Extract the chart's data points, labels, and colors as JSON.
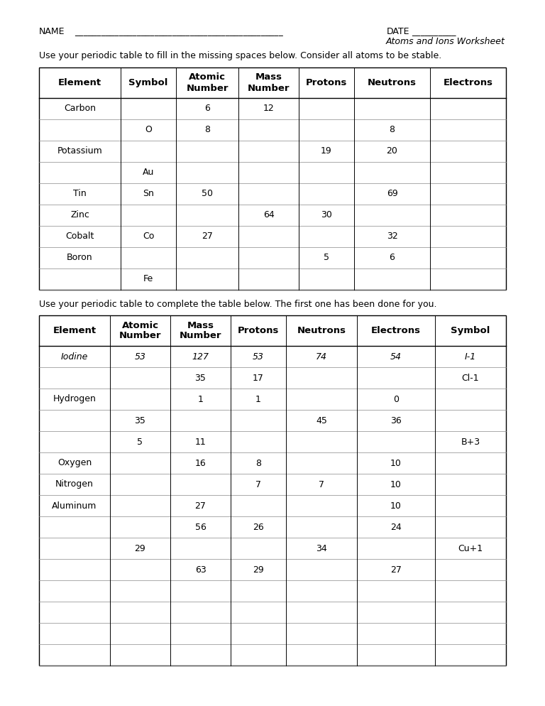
{
  "title_name": "NAME",
  "title_name_line": "_______________________________________________",
  "title_date": "DATE",
  "title_date_line": "__________",
  "title_line2": "Atoms and Ions Worksheet",
  "instruction1": "Use your periodic table to fill in the missing spaces below. Consider all atoms to be stable.",
  "instruction2": "Use your periodic table to complete the table below. The first one has been done for you.",
  "table1_headers": [
    "Element",
    "Symbol",
    "Atomic\nNumber",
    "Mass\nNumber",
    "Protons",
    "Neutrons",
    "Electrons"
  ],
  "table1_rows": [
    [
      "Carbon",
      "",
      "6",
      "12",
      "",
      "",
      ""
    ],
    [
      "",
      "O",
      "8",
      "",
      "",
      "8",
      ""
    ],
    [
      "Potassium",
      "",
      "",
      "",
      "19",
      "20",
      ""
    ],
    [
      "",
      "Au",
      "",
      "",
      "",
      "",
      ""
    ],
    [
      "Tin",
      "Sn",
      "50",
      "",
      "",
      "69",
      ""
    ],
    [
      "Zinc",
      "",
      "",
      "64",
      "30",
      "",
      ""
    ],
    [
      "Cobalt",
      "Co",
      "27",
      "",
      "",
      "32",
      ""
    ],
    [
      "Boron",
      "",
      "",
      "",
      "5",
      "6",
      ""
    ],
    [
      "",
      "Fe",
      "",
      "",
      "",
      "",
      ""
    ]
  ],
  "table2_headers": [
    "Element",
    "Atomic\nNumber",
    "Mass\nNumber",
    "Protons",
    "Neutrons",
    "Electrons",
    "Symbol"
  ],
  "table2_rows": [
    [
      "Iodine",
      "53",
      "127",
      "53",
      "74",
      "54",
      "I-1"
    ],
    [
      "",
      "",
      "35",
      "17",
      "",
      "",
      "Cl-1"
    ],
    [
      "Hydrogen",
      "",
      "1",
      "1",
      "",
      "0",
      ""
    ],
    [
      "",
      "35",
      "",
      "",
      "45",
      "36",
      ""
    ],
    [
      "",
      "5",
      "11",
      "",
      "",
      "",
      "B+3"
    ],
    [
      "Oxygen",
      "",
      "16",
      "8",
      "",
      "10",
      ""
    ],
    [
      "Nitrogen",
      "",
      "",
      "7",
      "7",
      "10",
      ""
    ],
    [
      "Aluminum",
      "",
      "27",
      "",
      "",
      "10",
      ""
    ],
    [
      "",
      "",
      "56",
      "26",
      "",
      "24",
      ""
    ],
    [
      "",
      "29",
      "",
      "",
      "34",
      "",
      "Cu+1"
    ],
    [
      "",
      "",
      "63",
      "29",
      "",
      "27",
      ""
    ],
    [
      "",
      "",
      "",
      "",
      "",
      "",
      ""
    ],
    [
      "",
      "",
      "",
      "",
      "",
      "",
      ""
    ],
    [
      "",
      "",
      "",
      "",
      "",
      "",
      ""
    ],
    [
      "",
      "",
      "",
      "",
      "",
      "",
      ""
    ]
  ],
  "background_color": "#ffffff"
}
